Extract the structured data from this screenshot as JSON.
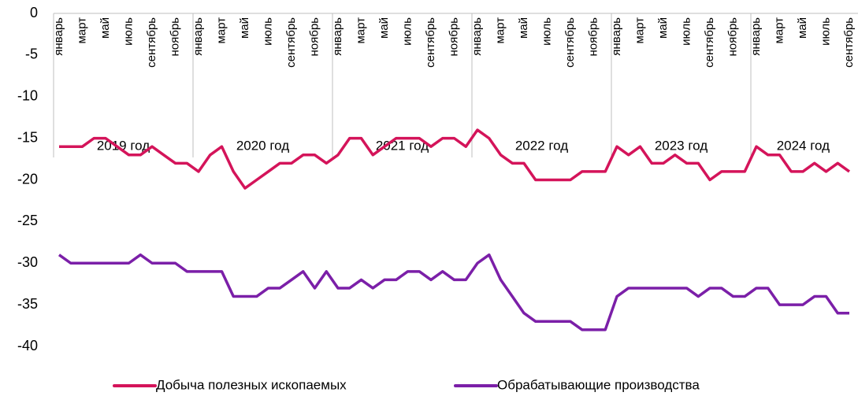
{
  "chart_data": {
    "type": "line",
    "categories": [
      "январь",
      null,
      "март",
      null,
      "май",
      null,
      "июль",
      null,
      "сентябрь",
      null,
      "ноябрь",
      null,
      "январь",
      null,
      "март",
      null,
      "май",
      null,
      "июль",
      null,
      "сентябрь",
      null,
      "ноябрь",
      null,
      "январь",
      null,
      "март",
      null,
      "май",
      null,
      "июль",
      null,
      "сентябрь",
      null,
      "ноябрь",
      null,
      "январь",
      null,
      "март",
      null,
      "май",
      null,
      "июль",
      null,
      "сентябрь",
      null,
      "ноябрь",
      null,
      "январь",
      null,
      "март",
      null,
      "май",
      null,
      "июль",
      null,
      "сентябрь",
      null,
      "ноябрь",
      null,
      "январь",
      null,
      "март",
      null,
      "май",
      null,
      "июль",
      null,
      "сентябрь"
    ],
    "year_groups": [
      "2019 год",
      "2020 год",
      "2021 год",
      "2022 год",
      "2023 год",
      "2024 год"
    ],
    "series": [
      {
        "name": "Добыча полезных ископаемых",
        "color": "#d4145a",
        "values": [
          -16,
          -16,
          -16,
          -15,
          -15,
          -16,
          -17,
          -17,
          -16,
          -17,
          -18,
          -18,
          -19,
          -17,
          -16,
          -19,
          -21,
          -20,
          -19,
          -18,
          -18,
          -17,
          -17,
          -18,
          -17,
          -15,
          -15,
          -17,
          -16,
          -15,
          -15,
          -15,
          -16,
          -15,
          -15,
          -16,
          -14,
          -15,
          -17,
          -18,
          -18,
          -20,
          -20,
          -20,
          -20,
          -19,
          -19,
          -19,
          -16,
          -17,
          -16,
          -18,
          -18,
          -17,
          -18,
          -18,
          -20,
          -19,
          -19,
          -19,
          -16,
          -17,
          -17,
          -19,
          -19,
          -18,
          -19,
          -18,
          -19
        ]
      },
      {
        "name": "Обрабатывающие производства",
        "color": "#7b1fa8",
        "values": [
          -29,
          -30,
          -30,
          -30,
          -30,
          -30,
          -30,
          -29,
          -30,
          -30,
          -30,
          -31,
          -31,
          -31,
          -31,
          -34,
          -34,
          -34,
          -33,
          -33,
          -32,
          -31,
          -33,
          -31,
          -33,
          -33,
          -32,
          -33,
          -32,
          -32,
          -31,
          -31,
          -32,
          -31,
          -32,
          -32,
          -30,
          -29,
          -32,
          -34,
          -36,
          -37,
          -37,
          -37,
          -37,
          -38,
          -38,
          -38,
          -34,
          -33,
          -33,
          -33,
          -33,
          -33,
          -33,
          -34,
          -33,
          -33,
          -34,
          -34,
          -33,
          -33,
          -35,
          -35,
          -35,
          -34,
          -34,
          -36,
          -36
        ]
      }
    ],
    "ylim": [
      -40,
      0
    ],
    "yticks": [
      0,
      -5,
      -10,
      -15,
      -20,
      -25,
      -30,
      -35,
      -40
    ]
  }
}
